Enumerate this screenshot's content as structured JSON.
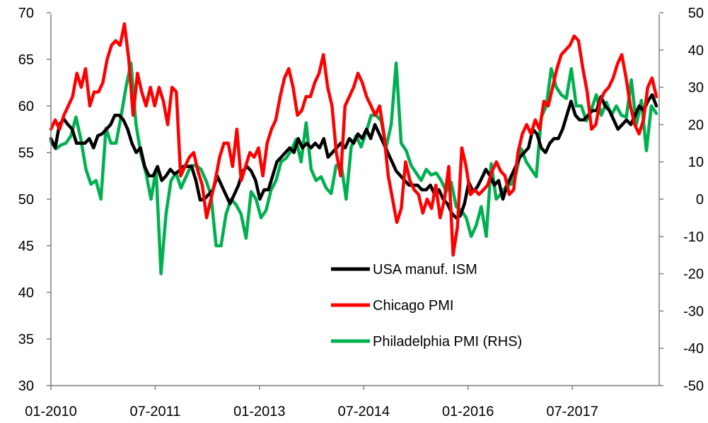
{
  "chart_data": {
    "type": "line",
    "left_axis": {
      "range": [
        30,
        70
      ],
      "ticks": [
        30,
        35,
        40,
        45,
        50,
        55,
        60,
        65,
        70
      ]
    },
    "right_axis": {
      "range": [
        -50,
        50
      ],
      "ticks": [
        -50,
        -40,
        -30,
        -20,
        -10,
        0,
        10,
        20,
        30,
        40,
        50
      ]
    },
    "x_ticks": [
      "01-2010",
      "07-2011",
      "01-2013",
      "07-2014",
      "01-2016",
      "07-2017"
    ],
    "x_start": "2010-01",
    "x_end": "2018-10",
    "legend_position": "inside-lower-center",
    "series": [
      {
        "name": "USA manuf. ISM",
        "axis": "left",
        "color": "#000000",
        "values": [
          56.5,
          55.5,
          58.0,
          58.6,
          58.0,
          57.5,
          56.0,
          56.0,
          56.0,
          56.5,
          55.5,
          56.8,
          57.0,
          57.5,
          58.0,
          59.0,
          59.0,
          58.5,
          57.5,
          56.0,
          55.0,
          55.5,
          53.5,
          52.5,
          52.5,
          53.5,
          52.0,
          52.5,
          53.2,
          52.7,
          53.0,
          53.5,
          53.5,
          53.5,
          52.0,
          49.9,
          50.0,
          50.5,
          51.0,
          52.5,
          51.5,
          50.5,
          49.5,
          50.5,
          51.5,
          53.0,
          53.5,
          53.0,
          52.0,
          50.0,
          51.0,
          51.0,
          52.5,
          54.0,
          54.5,
          55.0,
          55.5,
          55.0,
          56.5,
          55.5,
          56.0,
          55.5,
          56.0,
          55.5,
          56.5,
          54.5,
          55.0,
          55.5,
          56.0,
          55.5,
          56.5,
          56.0,
          57.0,
          56.5,
          57.5,
          56.5,
          58.0,
          57.0,
          56.0,
          55.0,
          54.0,
          53.0,
          52.5,
          52.0,
          51.5,
          51.5,
          51.5,
          51.0,
          51.0,
          51.5,
          50.5,
          51.0,
          50.0,
          49.5,
          48.5,
          48.0,
          48.2,
          49.5,
          51.8,
          50.8,
          51.3,
          52.2,
          53.2,
          52.5,
          51.5,
          52.0,
          50.0,
          51.5,
          52.5,
          53.5,
          54.5,
          55.0,
          55.5,
          57.5,
          57.0,
          55.5,
          55.0,
          56.0,
          56.5,
          56.5,
          57.5,
          59.0,
          60.5,
          59.0,
          58.5,
          58.5,
          59.0,
          59.5,
          59.5,
          61.0,
          60.0,
          59.5,
          58.5,
          57.5,
          58.0,
          58.5,
          58.0,
          59.0,
          60.0,
          59.5,
          60.5,
          61.2,
          60.0
        ]
      },
      {
        "name": "Chicago PMI",
        "axis": "left",
        "color": "#ff0000",
        "values": [
          57.5,
          58.5,
          57.5,
          59.0,
          60.0,
          61.0,
          63.5,
          62.0,
          64.0,
          60.0,
          61.5,
          61.5,
          62.5,
          65.0,
          66.5,
          67.0,
          66.5,
          68.8,
          65.0,
          59.0,
          63.5,
          61.5,
          60.0,
          62.0,
          60.0,
          62.0,
          60.5,
          58.0,
          62.0,
          61.5,
          52.5,
          53.5,
          54.5,
          55.0,
          53.0,
          51.5,
          48.0,
          50.0,
          52.0,
          54.5,
          56.0,
          56.0,
          53.5,
          57.5,
          52.0,
          53.5,
          55.0,
          54.5,
          55.5,
          52.5,
          56.0,
          57.5,
          58.5,
          61.0,
          63.0,
          64.0,
          62.0,
          59.0,
          59.5,
          61.0,
          61.0,
          62.5,
          63.5,
          65.5,
          62.0,
          60.0,
          55.0,
          52.5,
          60.0,
          61.0,
          62.0,
          63.5,
          62.5,
          61.0,
          60.0,
          59.0,
          60.0,
          57.0,
          52.5,
          50.0,
          47.5,
          49.0,
          54.0,
          52.0,
          51.0,
          50.5,
          48.5,
          50.0,
          49.0,
          51.5,
          48.0,
          50.0,
          53.5,
          44.0,
          47.0,
          55.5,
          53.5,
          50.5,
          51.0,
          50.5,
          51.0,
          51.5,
          53.0,
          54.0,
          53.0,
          52.5,
          50.5,
          51.0,
          55.0,
          57.0,
          58.0,
          57.0,
          58.5,
          57.5,
          60.5,
          60.0,
          62.0,
          64.0,
          65.5,
          66.0,
          66.5,
          67.5,
          67.0,
          64.0,
          61.5,
          57.5,
          58.0,
          60.5,
          61.5,
          62.0,
          63.0,
          64.5,
          65.5,
          63.0,
          60.0,
          58.0,
          57.0,
          58.5,
          62.0,
          63.0,
          61.0
        ]
      },
      {
        "name": "Philadelphia PMI (RHS)",
        "axis": "right",
        "color": "#00b050",
        "values": [
          15.5,
          13.5,
          14.5,
          15.0,
          17.0,
          22.0,
          16.0,
          8.0,
          4.0,
          5.0,
          0.0,
          19.0,
          15.0,
          15.0,
          22.0,
          30.0,
          36.5,
          20.0,
          12.0,
          7.0,
          0.0,
          8.0,
          -20.0,
          -4.0,
          5.0,
          7.0,
          3.0,
          6.0,
          9.0,
          9.0,
          8.0,
          5.0,
          1.0,
          -12.5,
          -12.5,
          -4.0,
          0.0,
          -1.5,
          -4.0,
          -10.5,
          2.0,
          0.0,
          -5.0,
          -3.0,
          2.5,
          5.0,
          10.0,
          11.0,
          13.0,
          16.0,
          10.0,
          20.5,
          8.0,
          5.0,
          6.0,
          3.0,
          1.5,
          9.0,
          9.5,
          0.0,
          14.0,
          17.0,
          14.0,
          18.0,
          22.5,
          22.5,
          21.0,
          14.0,
          20.0,
          36.5,
          15.0,
          13.0,
          9.0,
          7.0,
          5.0,
          8.0,
          6.5,
          7.0,
          5.0,
          2.0,
          4.5,
          -2.0,
          -3.0,
          -5.0,
          -10.0,
          -7.0,
          -2.0,
          -10.0,
          9.5,
          0.0,
          1.5,
          3.5,
          4.0,
          7.0,
          13.5,
          10.0,
          8.0,
          6.0,
          22.0,
          25.0,
          35.0,
          30.0,
          28.0,
          27.0,
          35.0,
          25.0,
          25.0,
          21.0,
          24.0,
          28.0,
          22.5,
          26.0,
          22.5,
          25.0,
          22.5,
          22.0,
          32.0,
          20.0,
          26.5,
          13.0,
          25.0,
          23.0
        ]
      }
    ]
  }
}
